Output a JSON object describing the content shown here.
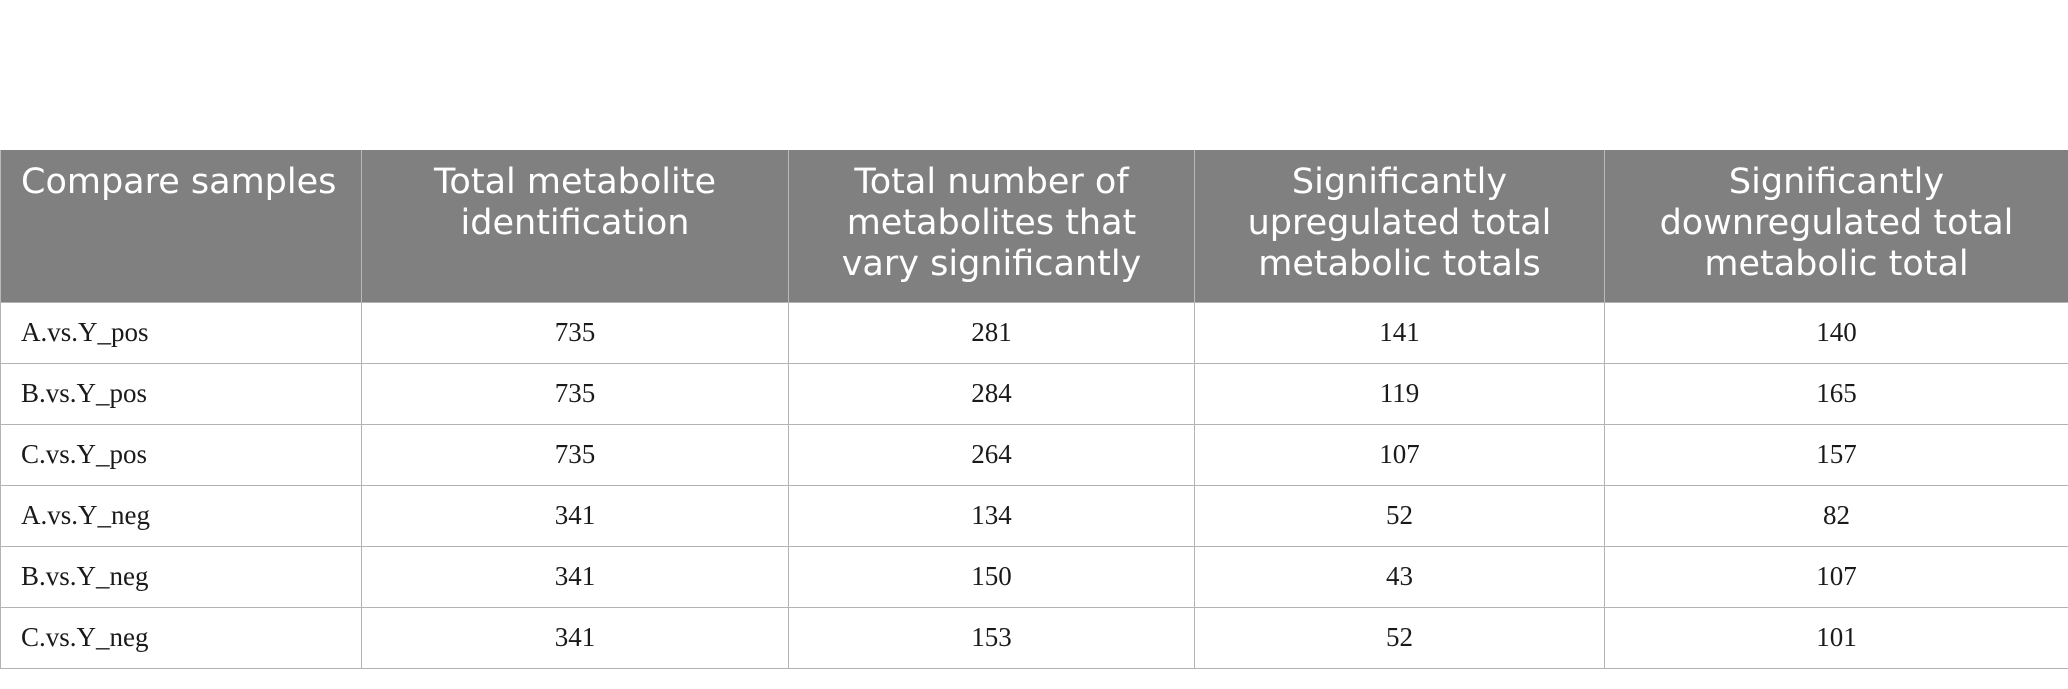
{
  "table": {
    "headers": [
      "Compare samples",
      "Total metabolite identification",
      "Total number of metabolites that vary significantly",
      "Significantly upregulated total metabolic totals",
      "Significantly downregulated total metabolic total"
    ],
    "rows": [
      [
        "A.vs.Y_pos",
        "735",
        "281",
        "141",
        "140"
      ],
      [
        "B.vs.Y_pos",
        "735",
        "284",
        "119",
        "165"
      ],
      [
        "C.vs.Y_pos",
        "735",
        "264",
        "107",
        "157"
      ],
      [
        "A.vs.Y_neg",
        "341",
        "134",
        "52",
        "82"
      ],
      [
        "B.vs.Y_neg",
        "341",
        "150",
        "43",
        "107"
      ],
      [
        "C.vs.Y_neg",
        "341",
        "153",
        "52",
        "101"
      ]
    ]
  },
  "colors": {
    "header_background": "#808080",
    "header_text": "#ffffff",
    "grid_lines": "#b3b3b3"
  }
}
